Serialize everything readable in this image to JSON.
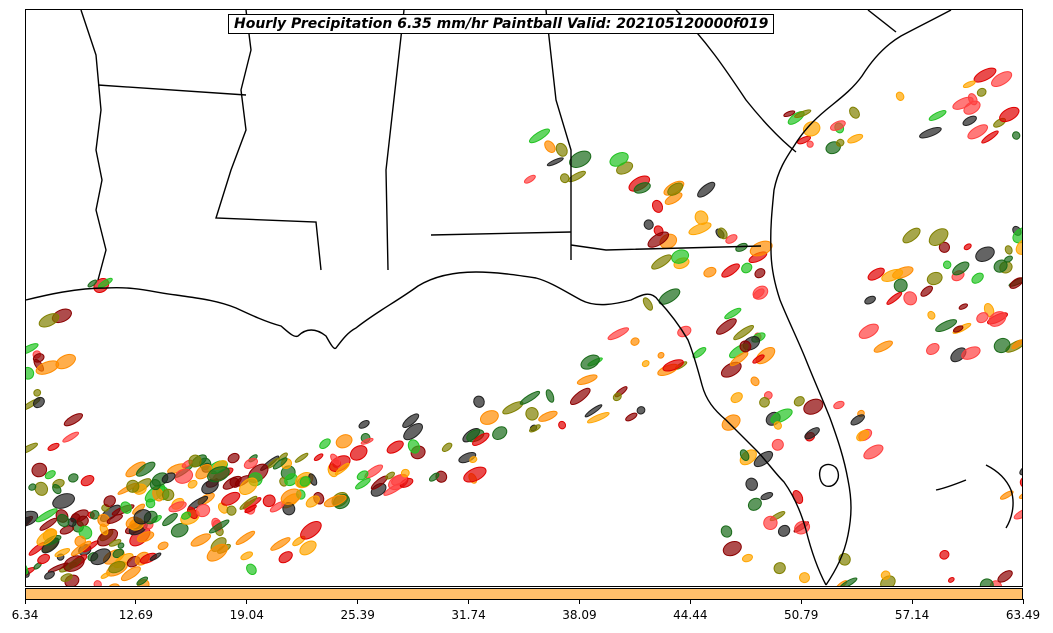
{
  "title": "Hourly Precipitation 6.35 mm/hr Paintball Valid: 202105120000f019",
  "colorbar": {
    "color": "#ffbf6b",
    "ticks": [
      "6.34",
      "12.69",
      "19.04",
      "25.39",
      "31.74",
      "38.09",
      "44.44",
      "50.79",
      "57.14",
      "63.49"
    ]
  },
  "member_colors": [
    "#e00000",
    "#ff8c00",
    "#8b0000",
    "#808000",
    "#22c322",
    "#1a6b1a",
    "#222222",
    "#ff4040",
    "#ffa500"
  ]
}
